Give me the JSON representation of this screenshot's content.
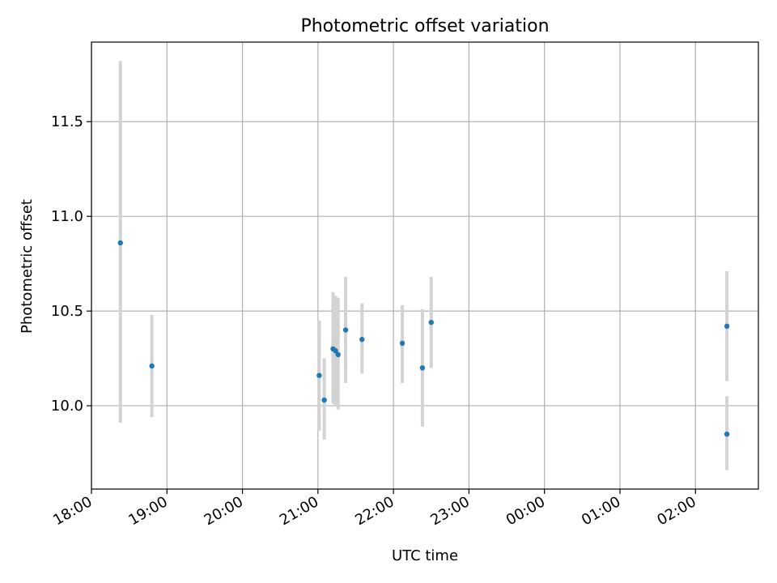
{
  "chart_data": {
    "type": "scatter",
    "title": "Photometric offset variation",
    "xlabel": "UTC time",
    "ylabel": "Photometric offset",
    "x_axis_kind": "time",
    "xlim": [
      "18:00",
      "02:50"
    ],
    "ylim": [
      9.56,
      11.92
    ],
    "grid": true,
    "x_ticks": [
      "18:00",
      "19:00",
      "20:00",
      "21:00",
      "22:00",
      "23:00",
      "00:00",
      "01:00",
      "02:00"
    ],
    "y_ticks": [
      "10.0",
      "10.5",
      "11.0",
      "11.5"
    ],
    "y_tick_values": [
      10.0,
      10.5,
      11.0,
      11.5
    ],
    "marker_color": "#1f77b4",
    "errorbar_color": "#d3d3d3",
    "series": [
      {
        "points": [
          {
            "x": "18:23",
            "y": 10.86,
            "yerr_low": 9.91,
            "yerr_high": 11.82
          },
          {
            "x": "18:48",
            "y": 10.21,
            "yerr_low": 9.94,
            "yerr_high": 10.48
          },
          {
            "x": "21:01",
            "y": 10.16,
            "yerr_low": 9.87,
            "yerr_high": 10.45
          },
          {
            "x": "21:05",
            "y": 10.03,
            "yerr_low": 9.82,
            "yerr_high": 10.25
          },
          {
            "x": "21:12",
            "y": 10.3,
            "yerr_low": 10.01,
            "yerr_high": 10.6
          },
          {
            "x": "21:14",
            "y": 10.29,
            "yerr_low": 10.0,
            "yerr_high": 10.58
          },
          {
            "x": "21:16",
            "y": 10.27,
            "yerr_low": 9.98,
            "yerr_high": 10.57
          },
          {
            "x": "21:22",
            "y": 10.4,
            "yerr_low": 10.12,
            "yerr_high": 10.68
          },
          {
            "x": "21:35",
            "y": 10.35,
            "yerr_low": 10.17,
            "yerr_high": 10.54
          },
          {
            "x": "22:07",
            "y": 10.33,
            "yerr_low": 10.12,
            "yerr_high": 10.53
          },
          {
            "x": "22:23",
            "y": 10.2,
            "yerr_low": 9.89,
            "yerr_high": 10.51
          },
          {
            "x": "22:30",
            "y": 10.44,
            "yerr_low": 10.2,
            "yerr_high": 10.68
          },
          {
            "x": "02:25",
            "y": 10.42,
            "yerr_low": 10.13,
            "yerr_high": 10.71
          },
          {
            "x": "02:25",
            "y": 9.85,
            "yerr_low": 9.66,
            "yerr_high": 10.05
          }
        ]
      }
    ]
  }
}
